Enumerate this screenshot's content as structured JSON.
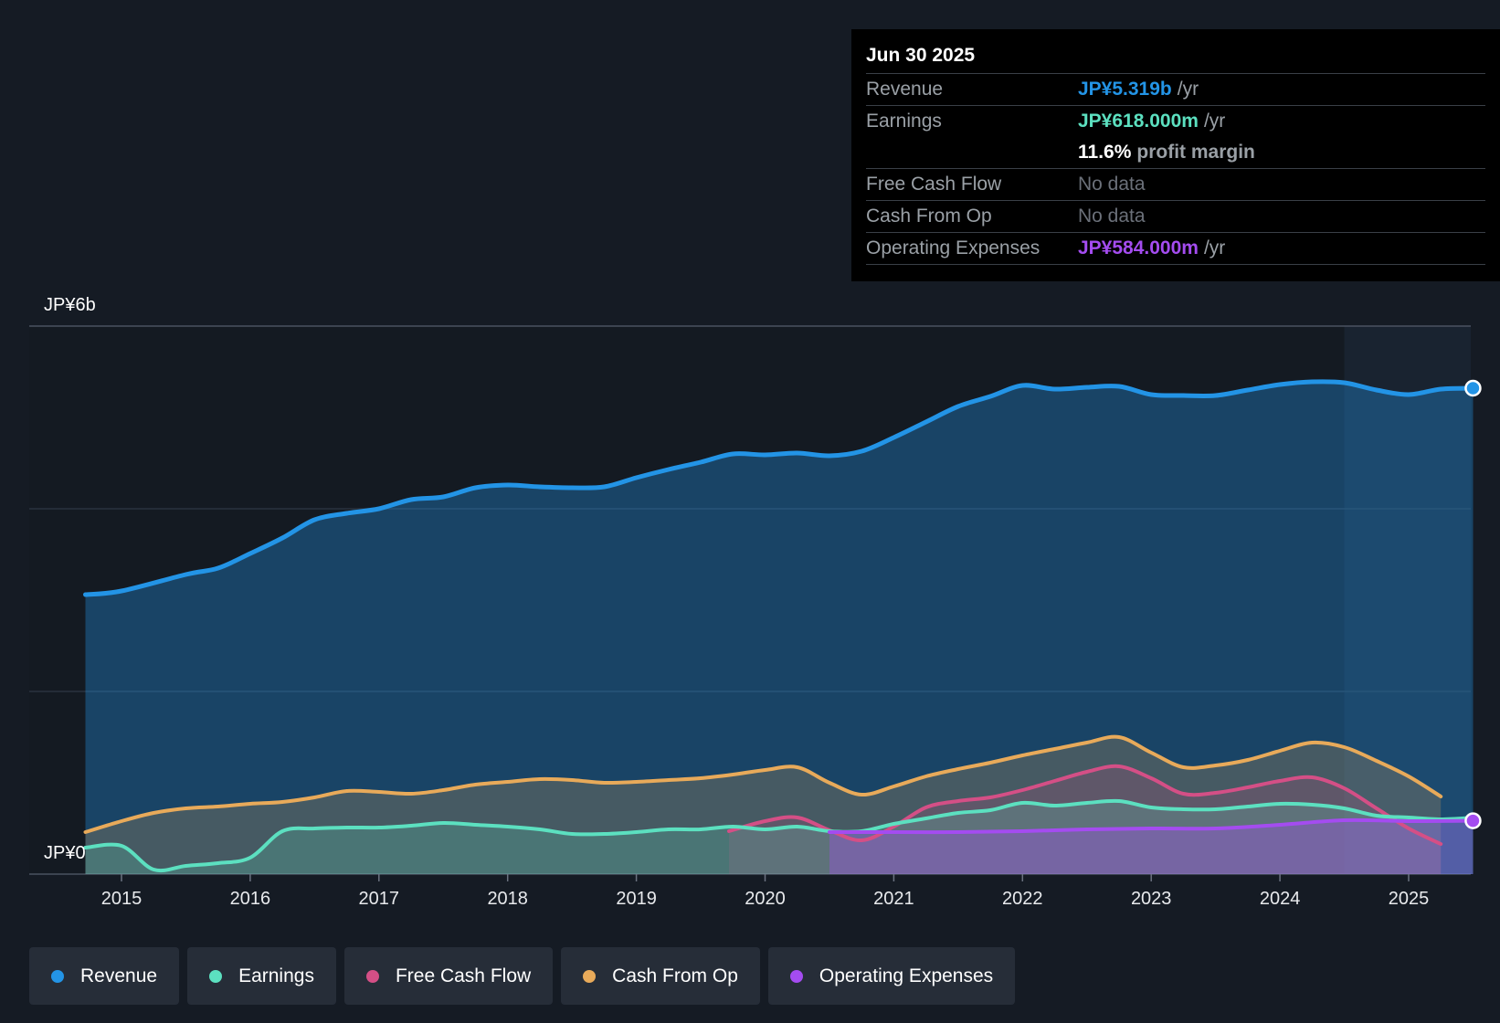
{
  "tooltip": {
    "date": "Jun 30 2025",
    "rows": {
      "revenue": {
        "label": "Revenue",
        "value": "JP¥5.319b",
        "unit": "/yr"
      },
      "earnings": {
        "label": "Earnings",
        "value": "JP¥618.000m",
        "unit": "/yr"
      },
      "margin": {
        "value": "11.6%",
        "unit": "profit margin"
      },
      "fcf": {
        "label": "Free Cash Flow",
        "value": "No data"
      },
      "cfo": {
        "label": "Cash From Op",
        "value": "No data"
      },
      "opex": {
        "label": "Operating Expenses",
        "value": "JP¥584.000m",
        "unit": "/yr"
      }
    }
  },
  "colors": {
    "revenue": "#2394e6",
    "earnings": "#5ce0c0",
    "fcf": "#d44f86",
    "cfo": "#e8aa5a",
    "opex": "#a44cf0"
  },
  "legend": {
    "revenue": "Revenue",
    "earnings": "Earnings",
    "fcf": "Free Cash Flow",
    "cfo": "Cash From Op",
    "opex": "Operating Expenses"
  },
  "chart_data": {
    "type": "area",
    "title": "",
    "ylabel_top": "JP¥6b",
    "ylabel_bottom": "JP¥0",
    "ylim": [
      0,
      6
    ],
    "xlim": [
      2014.72,
      2025.5
    ],
    "forecast_shade_start": 2024.5,
    "x_ticks": [
      "2015",
      "2016",
      "2017",
      "2018",
      "2019",
      "2020",
      "2021",
      "2022",
      "2023",
      "2024",
      "2025"
    ],
    "series": [
      {
        "name": "Revenue",
        "key": "revenue",
        "points": [
          [
            2014.72,
            3.06
          ],
          [
            2015.0,
            3.1
          ],
          [
            2015.5,
            3.28
          ],
          [
            2015.75,
            3.35
          ],
          [
            2016.0,
            3.51
          ],
          [
            2016.25,
            3.68
          ],
          [
            2016.5,
            3.88
          ],
          [
            2016.75,
            3.95
          ],
          [
            2017.0,
            4.0
          ],
          [
            2017.25,
            4.1
          ],
          [
            2017.5,
            4.13
          ],
          [
            2017.75,
            4.23
          ],
          [
            2018.0,
            4.26
          ],
          [
            2018.25,
            4.24
          ],
          [
            2018.5,
            4.23
          ],
          [
            2018.75,
            4.24
          ],
          [
            2019.0,
            4.34
          ],
          [
            2019.25,
            4.43
          ],
          [
            2019.5,
            4.51
          ],
          [
            2019.75,
            4.6
          ],
          [
            2020.0,
            4.59
          ],
          [
            2020.25,
            4.61
          ],
          [
            2020.5,
            4.58
          ],
          [
            2020.75,
            4.63
          ],
          [
            2021.0,
            4.78
          ],
          [
            2021.25,
            4.95
          ],
          [
            2021.5,
            5.12
          ],
          [
            2021.75,
            5.23
          ],
          [
            2022.0,
            5.35
          ],
          [
            2022.25,
            5.31
          ],
          [
            2022.5,
            5.33
          ],
          [
            2022.75,
            5.34
          ],
          [
            2023.0,
            5.25
          ],
          [
            2023.25,
            5.24
          ],
          [
            2023.5,
            5.24
          ],
          [
            2023.75,
            5.3
          ],
          [
            2024.0,
            5.36
          ],
          [
            2024.25,
            5.39
          ],
          [
            2024.5,
            5.38
          ],
          [
            2024.75,
            5.3
          ],
          [
            2025.0,
            5.25
          ],
          [
            2025.25,
            5.31
          ],
          [
            2025.5,
            5.32
          ]
        ]
      },
      {
        "name": "Earnings",
        "key": "earnings",
        "points": [
          [
            2014.72,
            0.29
          ],
          [
            2015.0,
            0.31
          ],
          [
            2015.25,
            0.05
          ],
          [
            2015.5,
            0.09
          ],
          [
            2015.75,
            0.12
          ],
          [
            2016.0,
            0.18
          ],
          [
            2016.25,
            0.47
          ],
          [
            2016.5,
            0.5
          ],
          [
            2016.75,
            0.51
          ],
          [
            2017.0,
            0.51
          ],
          [
            2017.25,
            0.53
          ],
          [
            2017.5,
            0.56
          ],
          [
            2017.75,
            0.54
          ],
          [
            2018.0,
            0.52
          ],
          [
            2018.25,
            0.49
          ],
          [
            2018.5,
            0.44
          ],
          [
            2018.75,
            0.44
          ],
          [
            2019.0,
            0.46
          ],
          [
            2019.25,
            0.49
          ],
          [
            2019.5,
            0.49
          ],
          [
            2019.75,
            0.52
          ],
          [
            2020.0,
            0.49
          ],
          [
            2020.25,
            0.52
          ],
          [
            2020.5,
            0.47
          ],
          [
            2020.75,
            0.47
          ],
          [
            2021.0,
            0.55
          ],
          [
            2021.25,
            0.61
          ],
          [
            2021.5,
            0.67
          ],
          [
            2021.75,
            0.7
          ],
          [
            2022.0,
            0.78
          ],
          [
            2022.25,
            0.75
          ],
          [
            2022.5,
            0.78
          ],
          [
            2022.75,
            0.8
          ],
          [
            2023.0,
            0.73
          ],
          [
            2023.25,
            0.71
          ],
          [
            2023.5,
            0.71
          ],
          [
            2023.75,
            0.74
          ],
          [
            2024.0,
            0.77
          ],
          [
            2024.25,
            0.76
          ],
          [
            2024.5,
            0.72
          ],
          [
            2024.75,
            0.64
          ],
          [
            2025.0,
            0.62
          ],
          [
            2025.25,
            0.6
          ],
          [
            2025.5,
            0.618
          ]
        ]
      },
      {
        "name": "Free Cash Flow",
        "key": "fcf",
        "points": [
          [
            2019.72,
            0.47
          ],
          [
            2020.0,
            0.58
          ],
          [
            2020.25,
            0.62
          ],
          [
            2020.5,
            0.48
          ],
          [
            2020.75,
            0.37
          ],
          [
            2021.0,
            0.52
          ],
          [
            2021.25,
            0.73
          ],
          [
            2021.5,
            0.8
          ],
          [
            2021.75,
            0.84
          ],
          [
            2022.0,
            0.92
          ],
          [
            2022.25,
            1.02
          ],
          [
            2022.5,
            1.12
          ],
          [
            2022.75,
            1.18
          ],
          [
            2023.0,
            1.05
          ],
          [
            2023.25,
            0.88
          ],
          [
            2023.5,
            0.89
          ],
          [
            2023.75,
            0.95
          ],
          [
            2024.0,
            1.02
          ],
          [
            2024.25,
            1.06
          ],
          [
            2024.5,
            0.94
          ],
          [
            2024.75,
            0.72
          ],
          [
            2025.0,
            0.5
          ],
          [
            2025.25,
            0.33
          ]
        ]
      },
      {
        "name": "Cash From Op",
        "key": "cfo",
        "points": [
          [
            2014.72,
            0.46
          ],
          [
            2015.0,
            0.58
          ],
          [
            2015.25,
            0.67
          ],
          [
            2015.5,
            0.72
          ],
          [
            2015.75,
            0.74
          ],
          [
            2016.0,
            0.77
          ],
          [
            2016.25,
            0.79
          ],
          [
            2016.5,
            0.84
          ],
          [
            2016.75,
            0.91
          ],
          [
            2017.0,
            0.9
          ],
          [
            2017.25,
            0.88
          ],
          [
            2017.5,
            0.92
          ],
          [
            2017.75,
            0.98
          ],
          [
            2018.0,
            1.01
          ],
          [
            2018.25,
            1.04
          ],
          [
            2018.5,
            1.03
          ],
          [
            2018.75,
            1.0
          ],
          [
            2019.0,
            1.01
          ],
          [
            2019.25,
            1.03
          ],
          [
            2019.5,
            1.05
          ],
          [
            2019.75,
            1.09
          ],
          [
            2020.0,
            1.14
          ],
          [
            2020.25,
            1.17
          ],
          [
            2020.5,
            1.0
          ],
          [
            2020.75,
            0.87
          ],
          [
            2021.0,
            0.96
          ],
          [
            2021.25,
            1.07
          ],
          [
            2021.5,
            1.15
          ],
          [
            2021.75,
            1.22
          ],
          [
            2022.0,
            1.3
          ],
          [
            2022.25,
            1.37
          ],
          [
            2022.5,
            1.44
          ],
          [
            2022.75,
            1.5
          ],
          [
            2023.0,
            1.33
          ],
          [
            2023.25,
            1.17
          ],
          [
            2023.5,
            1.19
          ],
          [
            2023.75,
            1.25
          ],
          [
            2024.0,
            1.35
          ],
          [
            2024.25,
            1.44
          ],
          [
            2024.5,
            1.39
          ],
          [
            2024.75,
            1.24
          ],
          [
            2025.0,
            1.07
          ],
          [
            2025.25,
            0.85
          ]
        ]
      },
      {
        "name": "Operating Expenses",
        "key": "opex",
        "points": [
          [
            2020.5,
            0.46
          ],
          [
            2020.75,
            0.46
          ],
          [
            2021.0,
            0.46
          ],
          [
            2021.5,
            0.46
          ],
          [
            2022.0,
            0.47
          ],
          [
            2022.5,
            0.49
          ],
          [
            2023.0,
            0.5
          ],
          [
            2023.5,
            0.5
          ],
          [
            2024.0,
            0.54
          ],
          [
            2024.5,
            0.59
          ],
          [
            2025.0,
            0.58
          ],
          [
            2025.5,
            0.584
          ]
        ]
      }
    ]
  }
}
